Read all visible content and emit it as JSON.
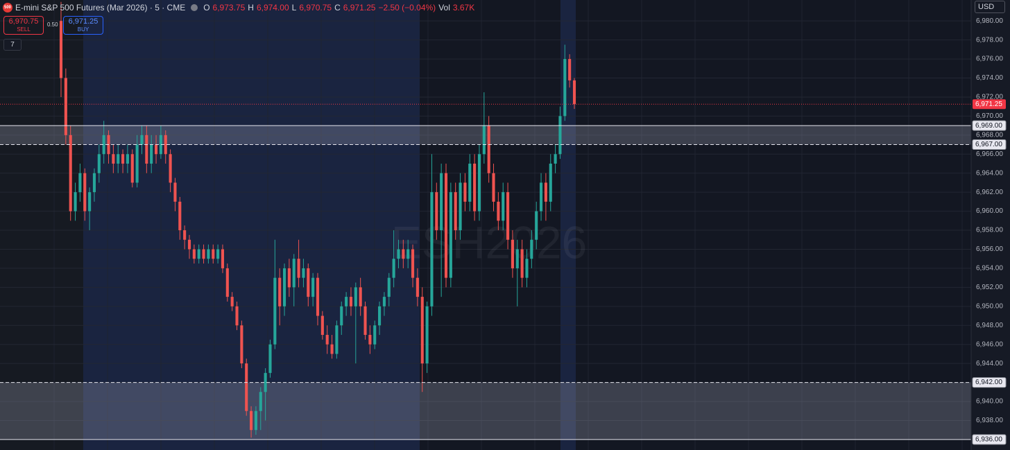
{
  "toolbar": {
    "logo": "500",
    "symbol": "E-mini S&P 500 Futures (Mar 2026) · 5 · CME",
    "ohlc": [
      {
        "label": "O",
        "value": "6,973.75"
      },
      {
        "label": "H",
        "value": "6,974.00"
      },
      {
        "label": "L",
        "value": "6,970.75"
      },
      {
        "label": "C",
        "value": "6,971.25"
      }
    ],
    "change": "−2.50 (−0.04%)",
    "volume_label": "Vol",
    "volume": "3.67K",
    "sell_price": "6,970.75",
    "sell": "SELL",
    "spread": "0.50",
    "buy_price": "6,971.25",
    "buy": "BUY",
    "indicators": "7",
    "currency": "USD"
  },
  "chart_data": {
    "type": "candlestick",
    "watermark": "ESH2026",
    "up_color": "#26a69a",
    "down_color": "#ef5350",
    "grid": true,
    "ylim": [
      6934.9,
      6982.2
    ],
    "yticks": [
      {
        "value": 6936,
        "label": "6,936.00"
      },
      {
        "value": 6938,
        "label": "6,938.00"
      },
      {
        "value": 6940,
        "label": "6,940.00"
      },
      {
        "value": 6942,
        "label": "6,942.00"
      },
      {
        "value": 6944,
        "label": "6,944.00"
      },
      {
        "value": 6946,
        "label": "6,946.00"
      },
      {
        "value": 6948,
        "label": "6,948.00"
      },
      {
        "value": 6950,
        "label": "6,950.00"
      },
      {
        "value": 6952,
        "label": "6,952.00"
      },
      {
        "value": 6954,
        "label": "6,954.00"
      },
      {
        "value": 6956,
        "label": "6,956.00"
      },
      {
        "value": 6958,
        "label": "6,958.00"
      },
      {
        "value": 6960,
        "label": "6,960.00"
      },
      {
        "value": 6962,
        "label": "6,962.00"
      },
      {
        "value": 6964,
        "label": "6,964.00"
      },
      {
        "value": 6966,
        "label": "6,966.00"
      },
      {
        "value": 6968,
        "label": "6,968.00"
      },
      {
        "value": 6970,
        "label": "6,970.00"
      },
      {
        "value": 6972,
        "label": "6,972.00"
      },
      {
        "value": 6974,
        "label": "6,974.00"
      },
      {
        "value": 6976,
        "label": "6,976.00"
      },
      {
        "value": 6978,
        "label": "6,978.00"
      },
      {
        "value": 6980,
        "label": "6,980.00"
      }
    ],
    "zones": [
      [
        6967,
        6969
      ],
      [
        6936,
        6942
      ]
    ],
    "zone_color": "rgba(178,181,200,0.26)",
    "levels": [
      {
        "value": 6969,
        "label": "6,969.00",
        "style": "solid"
      },
      {
        "value": 6967,
        "label": "6,967.00",
        "style": "dashed"
      },
      {
        "value": 6942,
        "label": "6,942.00",
        "style": "dashed"
      },
      {
        "value": 6936,
        "label": "6,936.00",
        "style": "solid"
      }
    ],
    "last_price": {
      "value": 6971.25,
      "label": "6,971.25",
      "color": "#f23645"
    },
    "candles": [
      [
        6980,
        6982,
        6972,
        6974
      ],
      [
        6974,
        6975,
        6967,
        6968
      ],
      [
        6968,
        6969,
        6959,
        6960
      ],
      [
        6960,
        6963,
        6959,
        6962
      ],
      [
        6962,
        6965,
        6961,
        6964
      ],
      [
        6964,
        6964.5,
        6959,
        6960
      ],
      [
        6960,
        6962.5,
        6958,
        6962
      ],
      [
        6962,
        6964.5,
        6961,
        6964
      ],
      [
        6964,
        6967,
        6963,
        6966
      ],
      [
        6966,
        6969.5,
        6965,
        6968
      ],
      [
        6968,
        6968.5,
        6965,
        6966
      ],
      [
        6966,
        6967,
        6964,
        6965
      ],
      [
        6965,
        6967,
        6964,
        6966
      ],
      [
        6966,
        6966.5,
        6964,
        6965
      ],
      [
        6965,
        6967,
        6964,
        6966
      ],
      [
        6966,
        6966.5,
        6962.5,
        6963
      ],
      [
        6963,
        6968,
        6962.5,
        6967
      ],
      [
        6967,
        6969,
        6966,
        6968
      ],
      [
        6968,
        6969,
        6964,
        6965
      ],
      [
        6965,
        6968,
        6964,
        6967
      ],
      [
        6967,
        6968,
        6965,
        6966
      ],
      [
        6966,
        6969,
        6965.5,
        6968
      ],
      [
        6968,
        6968.5,
        6965,
        6966
      ],
      [
        6966,
        6966.5,
        6962,
        6963
      ],
      [
        6963,
        6963.5,
        6960,
        6961
      ],
      [
        6961,
        6961.5,
        6957,
        6958
      ],
      [
        6958,
        6958.5,
        6956,
        6957
      ],
      [
        6957,
        6957.5,
        6955,
        6956
      ],
      [
        6956,
        6956.5,
        6954.5,
        6955
      ],
      [
        6955,
        6956.5,
        6954.5,
        6956
      ],
      [
        6956,
        6956.5,
        6954.5,
        6955
      ],
      [
        6955,
        6956.5,
        6954.5,
        6956
      ],
      [
        6956,
        6956.5,
        6954.5,
        6955
      ],
      [
        6955,
        6956.5,
        6954.5,
        6956
      ],
      [
        6956,
        6956.5,
        6953.5,
        6954
      ],
      [
        6954,
        6954.5,
        6950.5,
        6951
      ],
      [
        6951,
        6951.5,
        6949.5,
        6950
      ],
      [
        6950,
        6950.5,
        6947.5,
        6948
      ],
      [
        6948,
        6948.5,
        6943.5,
        6944
      ],
      [
        6944,
        6944.5,
        6938.5,
        6939
      ],
      [
        6939,
        6939.5,
        6936.2,
        6937
      ],
      [
        6937,
        6939.5,
        6936.5,
        6939
      ],
      [
        6939,
        6941.5,
        6937,
        6941
      ],
      [
        6941,
        6943.5,
        6938,
        6943
      ],
      [
        6943,
        6946.5,
        6942.5,
        6946
      ],
      [
        6946,
        6957,
        6945.5,
        6953
      ],
      [
        6953,
        6954,
        6948,
        6950
      ],
      [
        6950,
        6954.5,
        6949,
        6954
      ],
      [
        6954,
        6955,
        6951,
        6952
      ],
      [
        6952,
        6955.5,
        6950,
        6955
      ],
      [
        6955,
        6957,
        6952,
        6953
      ],
      [
        6953,
        6955,
        6952,
        6954
      ],
      [
        6954,
        6954.5,
        6950,
        6951
      ],
      [
        6951,
        6953.5,
        6950,
        6953
      ],
      [
        6953,
        6953.5,
        6948,
        6949
      ],
      [
        6949,
        6949.5,
        6946.5,
        6947
      ],
      [
        6947,
        6948,
        6945,
        6946
      ],
      [
        6946,
        6947,
        6944.5,
        6945
      ],
      [
        6945,
        6948.5,
        6944.5,
        6948
      ],
      [
        6948,
        6950.5,
        6947,
        6950
      ],
      [
        6950,
        6951.5,
        6949,
        6951
      ],
      [
        6951,
        6952,
        6949,
        6950
      ],
      [
        6950,
        6952.5,
        6944,
        6952
      ],
      [
        6952,
        6953,
        6949,
        6950
      ],
      [
        6950,
        6950.5,
        6946.5,
        6947
      ],
      [
        6947,
        6948,
        6945,
        6946
      ],
      [
        6946,
        6948.5,
        6945.5,
        6948
      ],
      [
        6948,
        6950.5,
        6947,
        6950
      ],
      [
        6950,
        6951.5,
        6949,
        6951
      ],
      [
        6951,
        6953.5,
        6950,
        6953
      ],
      [
        6953,
        6958,
        6952,
        6955
      ],
      [
        6955,
        6957,
        6954,
        6956
      ],
      [
        6956,
        6957,
        6954,
        6955
      ],
      [
        6955,
        6957,
        6954,
        6956
      ],
      [
        6956,
        6956.5,
        6952,
        6953
      ],
      [
        6953,
        6954,
        6950,
        6951
      ],
      [
        6951,
        6952,
        6941,
        6944
      ],
      [
        6944,
        6950.5,
        6943,
        6950
      ],
      [
        6950,
        6966,
        6949,
        6962
      ],
      [
        6962,
        6963,
        6957,
        6958
      ],
      [
        6958,
        6965,
        6951,
        6964
      ],
      [
        6964,
        6965,
        6952,
        6953
      ],
      [
        6953,
        6963,
        6952,
        6962
      ],
      [
        6962,
        6963,
        6957,
        6958
      ],
      [
        6958,
        6964,
        6957,
        6963
      ],
      [
        6963,
        6964,
        6960,
        6961
      ],
      [
        6961,
        6966,
        6960,
        6965
      ],
      [
        6965,
        6966,
        6959,
        6960
      ],
      [
        6960,
        6967,
        6959,
        6966
      ],
      [
        6966,
        6972.5,
        6965,
        6969
      ],
      [
        6969,
        6970,
        6963,
        6964
      ],
      [
        6964,
        6965,
        6960,
        6961
      ],
      [
        6961,
        6962,
        6958,
        6959
      ],
      [
        6959,
        6963,
        6958,
        6962
      ],
      [
        6962,
        6963,
        6956,
        6957
      ],
      [
        6957,
        6958,
        6953,
        6954
      ],
      [
        6954,
        6957,
        6950,
        6956
      ],
      [
        6956,
        6957,
        6952,
        6953
      ],
      [
        6953,
        6956,
        6952,
        6955
      ],
      [
        6955,
        6958,
        6954,
        6957
      ],
      [
        6957,
        6961,
        6956,
        6960
      ],
      [
        6960,
        6964,
        6959,
        6963
      ],
      [
        6963,
        6964,
        6959,
        6961
      ],
      [
        6961,
        6966,
        6960,
        6965
      ],
      [
        6965,
        6967,
        6964,
        6966
      ],
      [
        6966,
        6971,
        6965.5,
        6970
      ],
      [
        6970,
        6977.5,
        6969.5,
        6976
      ],
      [
        6976,
        6976.5,
        6973,
        6973.75
      ],
      [
        6973.75,
        6974,
        6970.75,
        6971.25
      ]
    ]
  }
}
